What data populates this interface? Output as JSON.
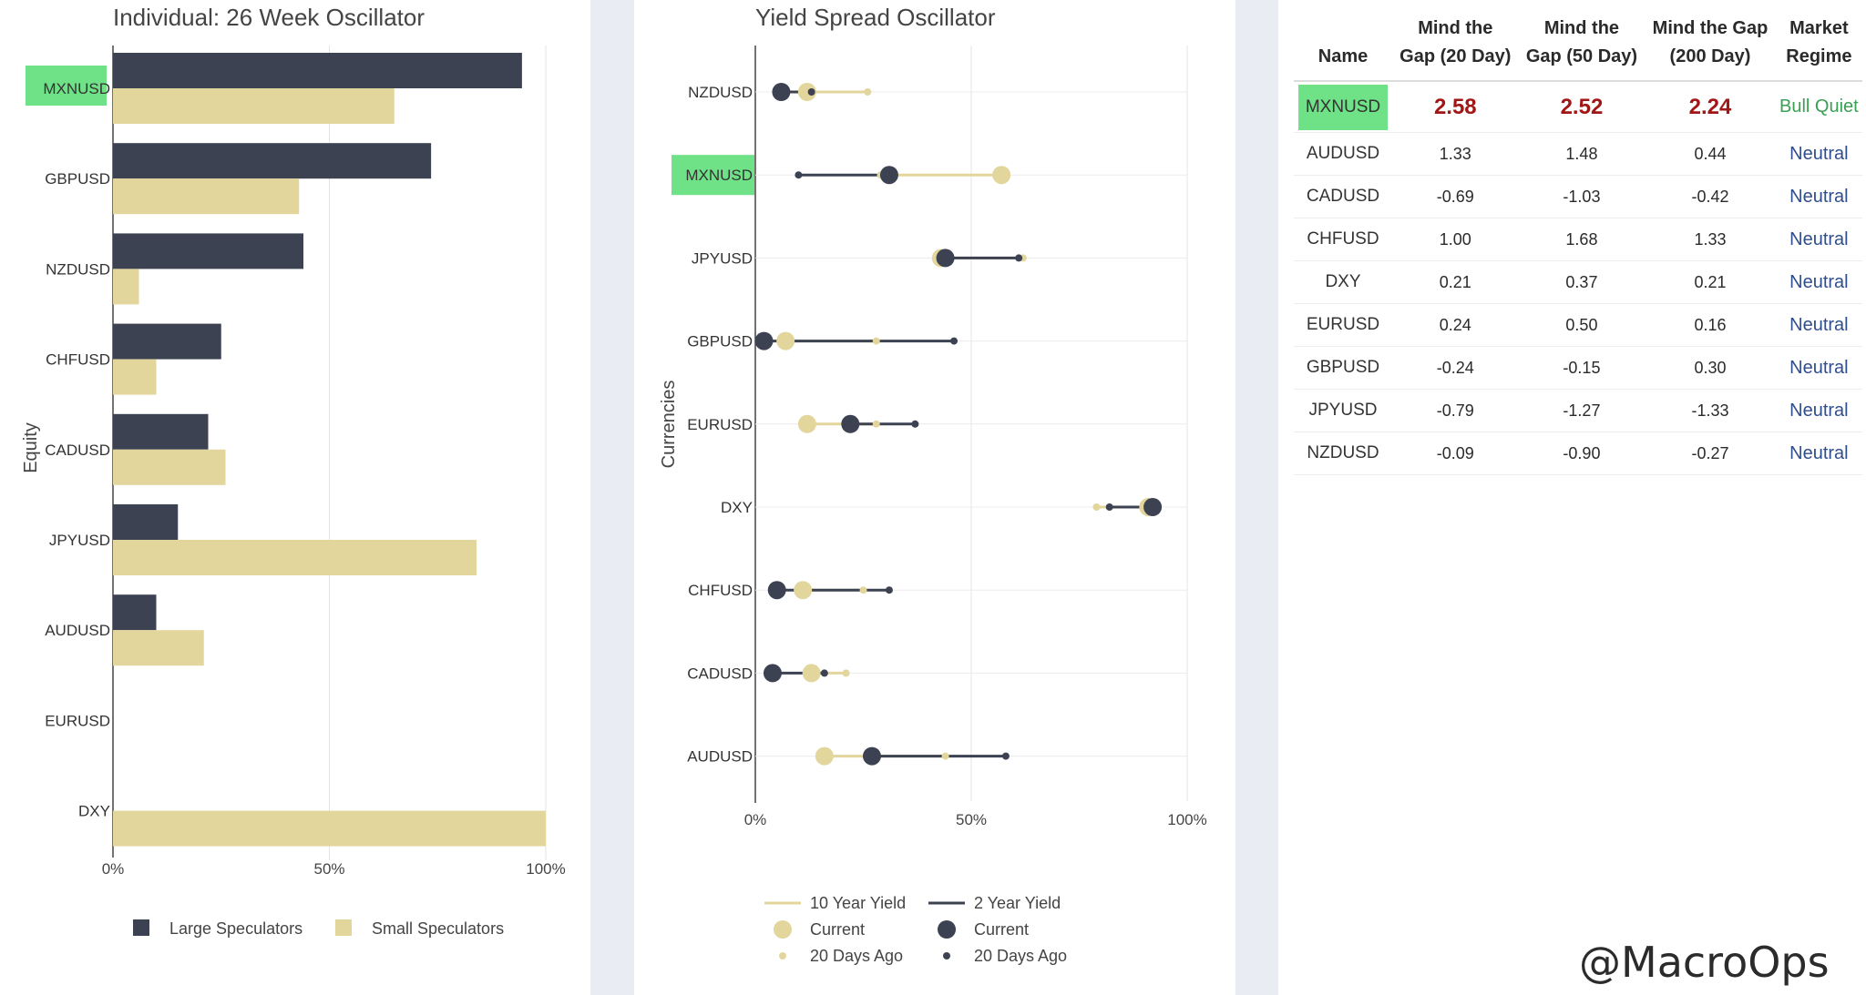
{
  "chart_data": [
    {
      "type": "bar",
      "orientation": "horizontal",
      "title": "Individual: 26 Week Oscillator",
      "ylabel": "Equity",
      "xlabel": "",
      "xlim": [
        0,
        100
      ],
      "x_ticks": [
        "0%",
        "50%",
        "100%"
      ],
      "highlight": "MXNUSD",
      "categories": [
        "MXNUSD",
        "GBPUSD",
        "NZDUSD",
        "CHFUSD",
        "CADUSD",
        "JPYUSD",
        "AUDUSD",
        "EURUSD",
        "DXY"
      ],
      "series": [
        {
          "name": "Large Speculators",
          "color": "#3d4252",
          "values": [
            94.5,
            73.5,
            44,
            25,
            22,
            15,
            10,
            0,
            0
          ]
        },
        {
          "name": "Small Speculators",
          "color": "#e2d69c",
          "values": [
            65,
            43,
            6,
            10,
            26,
            84,
            21,
            0,
            100
          ]
        }
      ]
    },
    {
      "type": "scatter",
      "orientation": "horizontal",
      "title": "Yield Spread Oscillator",
      "ylabel": "Currencies",
      "xlabel": "",
      "xlim": [
        0,
        100
      ],
      "x_ticks": [
        "0%",
        "50%",
        "100%"
      ],
      "highlight": "MXNUSD",
      "categories": [
        "NZDUSD",
        "MXNUSD",
        "JPYUSD",
        "GBPUSD",
        "EURUSD",
        "DXY",
        "CHFUSD",
        "CADUSD",
        "AUDUSD"
      ],
      "series": [
        {
          "name": "10 Year Yield",
          "color": "#e2d69c",
          "current": [
            12,
            57,
            43,
            7,
            12,
            91,
            11,
            13,
            16
          ],
          "days_ago_20": [
            26,
            29,
            62,
            28,
            28,
            79,
            25,
            21,
            44
          ]
        },
        {
          "name": "2 Year Yield",
          "color": "#3d4252",
          "current": [
            6,
            31,
            44,
            2,
            22,
            92,
            5,
            4,
            27
          ],
          "days_ago_20": [
            13,
            10,
            61,
            46,
            37,
            82,
            31,
            16,
            58
          ]
        }
      ],
      "legend": {
        "ten_year": "10 Year Yield",
        "two_year": "2 Year Yield",
        "current_a": "Current",
        "current_b": "Current",
        "ago_a": "20 Days Ago",
        "ago_b": "20 Days Ago"
      }
    }
  ],
  "table": {
    "headers": [
      {
        "l1": "",
        "l2": "Name"
      },
      {
        "l1": "Mind the",
        "l2": "Gap (20 Day)"
      },
      {
        "l1": "Mind the",
        "l2": "Gap (50 Day)"
      },
      {
        "l1": "Mind the Gap",
        "l2": "(200 Day)"
      },
      {
        "l1": "Market",
        "l2": "Regime"
      }
    ],
    "rows": [
      {
        "name": "MXNUSD",
        "g20": "2.58",
        "g50": "2.52",
        "g200": "2.24",
        "regime": "Bull Quiet"
      },
      {
        "name": "AUDUSD",
        "g20": "1.33",
        "g50": "1.48",
        "g200": "0.44",
        "regime": "Neutral"
      },
      {
        "name": "CADUSD",
        "g20": "-0.69",
        "g50": "-1.03",
        "g200": "-0.42",
        "regime": "Neutral"
      },
      {
        "name": "CHFUSD",
        "g20": "1.00",
        "g50": "1.68",
        "g200": "1.33",
        "regime": "Neutral"
      },
      {
        "name": "DXY",
        "g20": "0.21",
        "g50": "0.37",
        "g200": "0.21",
        "regime": "Neutral"
      },
      {
        "name": "EURUSD",
        "g20": "0.24",
        "g50": "0.50",
        "g200": "0.16",
        "regime": "Neutral"
      },
      {
        "name": "GBPUSD",
        "g20": "-0.24",
        "g50": "-0.15",
        "g200": "0.30",
        "regime": "Neutral"
      },
      {
        "name": "JPYUSD",
        "g20": "-0.79",
        "g50": "-1.27",
        "g200": "-1.33",
        "regime": "Neutral"
      },
      {
        "name": "NZDUSD",
        "g20": "-0.09",
        "g50": "-0.90",
        "g200": "-0.27",
        "regime": "Neutral"
      }
    ]
  },
  "watermark": "@MacroOps",
  "colors": {
    "dark": "#3d4252",
    "gold": "#e2d69c",
    "highlight": "#6fe187",
    "grid": "#e4e4e4",
    "axis": "#444444"
  }
}
